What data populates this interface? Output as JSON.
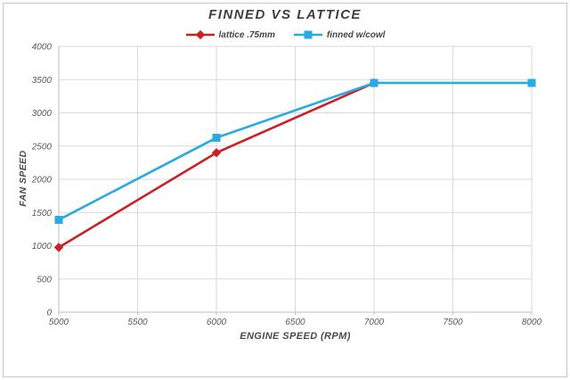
{
  "chart_data": {
    "type": "line",
    "title": "FINNED VS LATTICE",
    "xlabel": "ENGINE SPEED (RPM)",
    "ylabel": "FAN SPEED",
    "xlim": [
      5000,
      8000
    ],
    "ylim": [
      0,
      4000
    ],
    "x_ticks": [
      5000,
      5500,
      6000,
      6500,
      7000,
      7500,
      8000
    ],
    "y_ticks": [
      0,
      500,
      1000,
      1500,
      2000,
      2500,
      3000,
      3500,
      4000
    ],
    "grid": true,
    "legend_position": "top",
    "series": [
      {
        "name": "lattice .75mm",
        "color": "#cb2026",
        "marker": "diamond",
        "x": [
          5000,
          6000,
          7000
        ],
        "values": [
          975,
          2400,
          3450
        ]
      },
      {
        "name": "finned w/cowl",
        "color": "#29abe2",
        "marker": "square",
        "x": [
          5000,
          6000,
          7000,
          8000
        ],
        "values": [
          1390,
          2625,
          3450,
          3450
        ]
      }
    ],
    "colors": {
      "grid": "#d9d9d9",
      "axis": "#bdbdbd",
      "tick_text": "#595959",
      "title_text": "#3f3f3f",
      "frame_border": "#c6c6c6"
    }
  }
}
